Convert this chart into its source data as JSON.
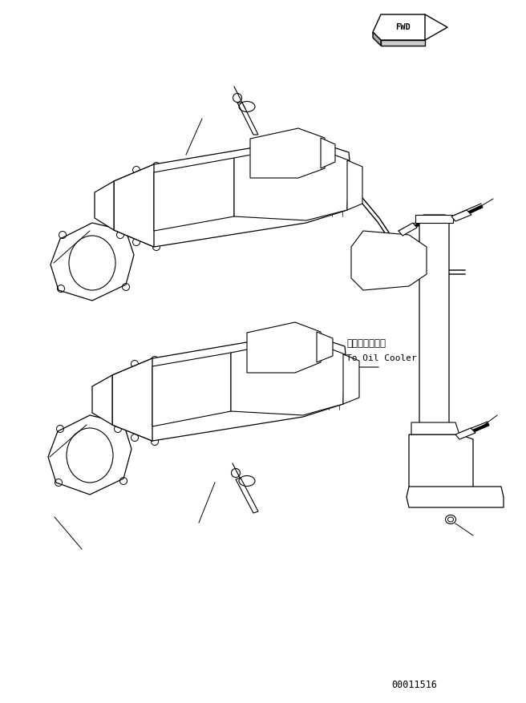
{
  "title": "",
  "background_color": "#ffffff",
  "line_color": "#000000",
  "fig_width": 6.56,
  "fig_height": 8.77,
  "dpi": 100,
  "oil_cooler_text_jp": "オイルクーラヘ",
  "oil_cooler_text_en": "To Oil Cooler",
  "part_number": "00011516"
}
